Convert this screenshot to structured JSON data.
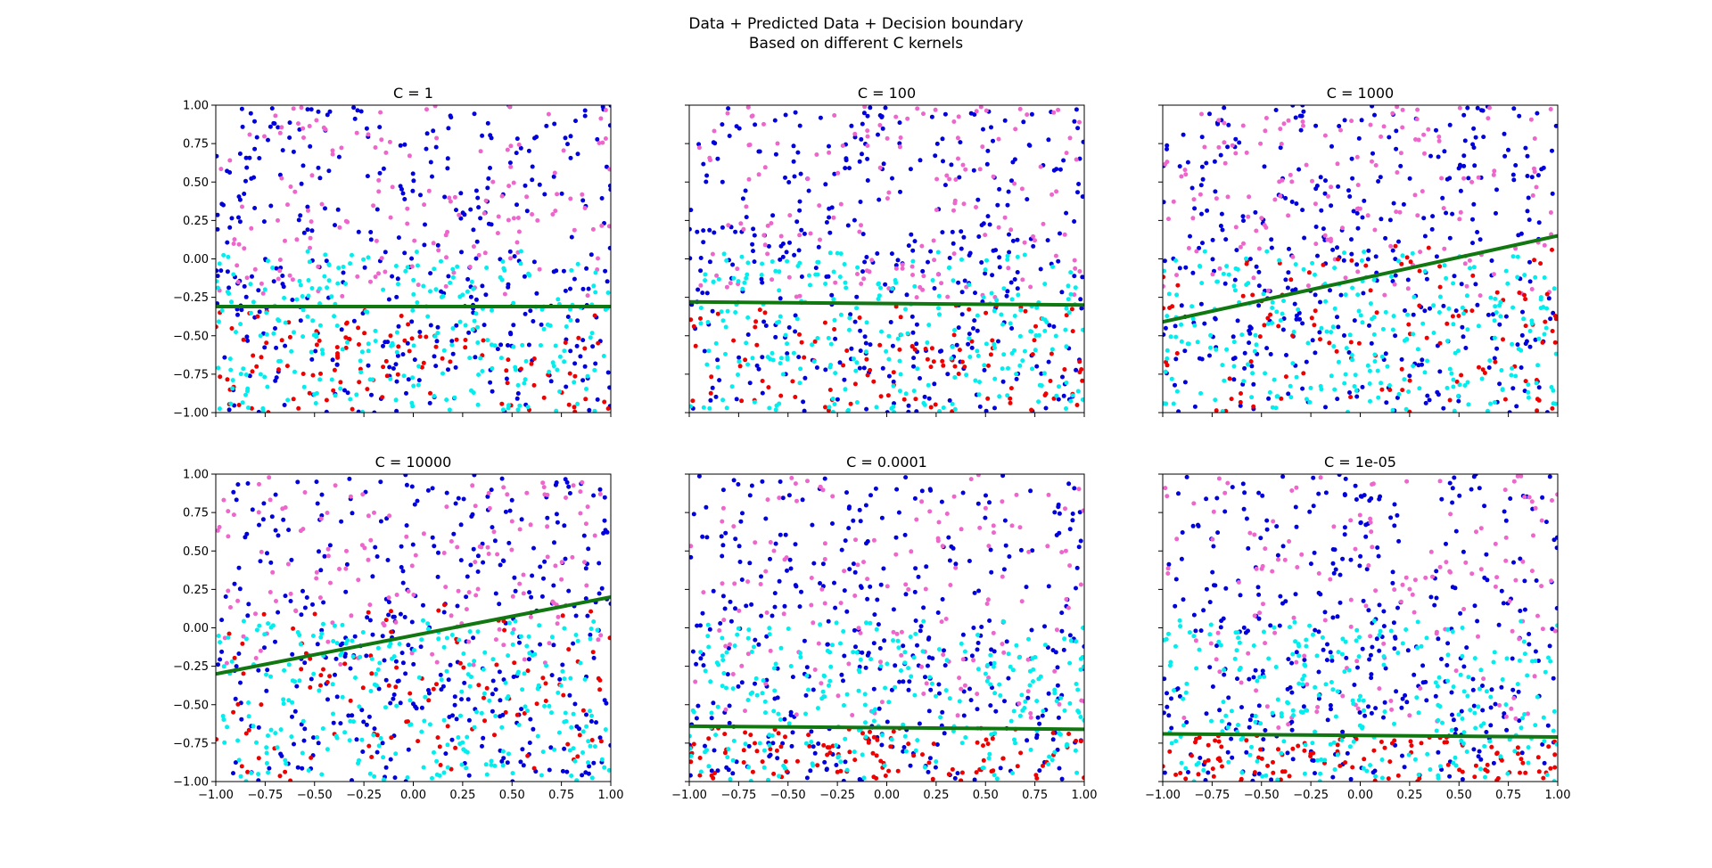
{
  "figure": {
    "suptitle_line1": "Data + Predicted Data + Decision boundary",
    "suptitle_line2": "Based on different C kernels"
  },
  "colors": {
    "class_a": "#0000dd",
    "class_a_predicted": "#ee66cc",
    "class_b": "#ee0000",
    "class_b_predicted": "#00eeee",
    "boundary": "#117711"
  },
  "chart_data": [
    {
      "type": "scatter",
      "title": "C = 1",
      "xlim": [
        -1,
        1
      ],
      "ylim": [
        -1,
        1
      ],
      "xticks": [
        "−1.00",
        "−0.75",
        "−0.50",
        "−0.25",
        "0.00",
        "0.25",
        "0.50",
        "0.75",
        "1.00"
      ],
      "yticks": [
        "−1.00",
        "−0.75",
        "−0.50",
        "−0.25",
        "0.00",
        "0.25",
        "0.50",
        "0.75",
        "1.00"
      ],
      "show_xticklabels": false,
      "show_yticklabels": true,
      "decision_boundary": {
        "x": [
          -1,
          1
        ],
        "y": [
          -0.31,
          -0.31
        ]
      },
      "series": [
        {
          "color_key": "class_a",
          "y_range": [
            -1,
            1
          ]
        },
        {
          "color_key": "class_a_predicted",
          "y_range": [
            -0.25,
            1
          ]
        },
        {
          "color_key": "class_b",
          "y_range": [
            -1,
            -0.3
          ]
        },
        {
          "color_key": "class_b_predicted",
          "y_range": [
            -1,
            0.05
          ]
        }
      ],
      "grid": false
    },
    {
      "type": "scatter",
      "title": "C = 100",
      "xlim": [
        -1,
        1
      ],
      "ylim": [
        -1,
        1
      ],
      "xticks": [
        "−1.00",
        "−0.75",
        "−0.50",
        "−0.25",
        "0.00",
        "0.25",
        "0.50",
        "0.75",
        "1.00"
      ],
      "yticks": [
        "−1.00",
        "−0.75",
        "−0.50",
        "−0.25",
        "0.00",
        "0.25",
        "0.50",
        "0.75",
        "1.00"
      ],
      "show_xticklabels": false,
      "show_yticklabels": false,
      "decision_boundary": {
        "x": [
          -1,
          1
        ],
        "y": [
          -0.28,
          -0.3
        ]
      },
      "series": [
        {
          "color_key": "class_a",
          "y_range": [
            -1,
            1
          ]
        },
        {
          "color_key": "class_a_predicted",
          "y_range": [
            -0.25,
            1
          ]
        },
        {
          "color_key": "class_b",
          "y_range": [
            -1,
            -0.3
          ]
        },
        {
          "color_key": "class_b_predicted",
          "y_range": [
            -1,
            0.05
          ]
        }
      ],
      "grid": false
    },
    {
      "type": "scatter",
      "title": "C = 1000",
      "xlim": [
        -1,
        1
      ],
      "ylim": [
        -1,
        1
      ],
      "xticks": [
        "−1.00",
        "−0.75",
        "−0.50",
        "−0.25",
        "0.00",
        "0.25",
        "0.50",
        "0.75",
        "1.00"
      ],
      "yticks": [
        "−1.00",
        "−0.75",
        "−0.50",
        "−0.25",
        "0.00",
        "0.25",
        "0.50",
        "0.75",
        "1.00"
      ],
      "show_xticklabels": false,
      "show_yticklabels": false,
      "decision_boundary": {
        "x": [
          -1,
          1
        ],
        "y": [
          -0.41,
          0.15
        ]
      },
      "series": [
        {
          "color_key": "class_a",
          "y_range": [
            -1,
            1
          ]
        },
        {
          "color_key": "class_a_predicted",
          "y_range": [
            -0.25,
            1
          ]
        },
        {
          "color_key": "class_b",
          "y_range": [
            -1,
            0.1
          ]
        },
        {
          "color_key": "class_b_predicted",
          "y_range": [
            -1,
            0.05
          ]
        }
      ],
      "grid": false
    },
    {
      "type": "scatter",
      "title": "C = 10000",
      "xlim": [
        -1,
        1
      ],
      "ylim": [
        -1,
        1
      ],
      "xticks": [
        "−1.00",
        "−0.75",
        "−0.50",
        "−0.25",
        "0.00",
        "0.25",
        "0.50",
        "0.75",
        "1.00"
      ],
      "yticks": [
        "−1.00",
        "−0.75",
        "−0.50",
        "−0.25",
        "0.00",
        "0.25",
        "0.50",
        "0.75",
        "1.00"
      ],
      "show_xticklabels": true,
      "show_yticklabels": true,
      "decision_boundary": {
        "x": [
          -1,
          1
        ],
        "y": [
          -0.3,
          0.2
        ]
      },
      "series": [
        {
          "color_key": "class_a",
          "y_range": [
            -1,
            1
          ]
        },
        {
          "color_key": "class_a_predicted",
          "y_range": [
            -0.25,
            1
          ]
        },
        {
          "color_key": "class_b",
          "y_range": [
            -1,
            0.15
          ]
        },
        {
          "color_key": "class_b_predicted",
          "y_range": [
            -1,
            0.05
          ]
        }
      ],
      "grid": false
    },
    {
      "type": "scatter",
      "title": "C = 0.0001",
      "xlim": [
        -1,
        1
      ],
      "ylim": [
        -1,
        1
      ],
      "xticks": [
        "−1.00",
        "−0.75",
        "−0.50",
        "−0.25",
        "0.00",
        "0.25",
        "0.50",
        "0.75",
        "1.00"
      ],
      "yticks": [
        "−1.00",
        "−0.75",
        "−0.50",
        "−0.25",
        "0.00",
        "0.25",
        "0.50",
        "0.75",
        "1.00"
      ],
      "show_xticklabels": true,
      "show_yticklabels": false,
      "decision_boundary": {
        "x": [
          -1,
          1
        ],
        "y": [
          -0.64,
          -0.66
        ]
      },
      "series": [
        {
          "color_key": "class_a",
          "y_range": [
            -1,
            1
          ]
        },
        {
          "color_key": "class_a_predicted",
          "y_range": [
            -0.6,
            1
          ]
        },
        {
          "color_key": "class_b",
          "y_range": [
            -1,
            -0.65
          ]
        },
        {
          "color_key": "class_b_predicted",
          "y_range": [
            -1,
            0.05
          ]
        }
      ],
      "grid": false
    },
    {
      "type": "scatter",
      "title": "C = 1e-05",
      "xlim": [
        -1,
        1
      ],
      "ylim": [
        -1,
        1
      ],
      "xticks": [
        "−1.00",
        "−0.75",
        "−0.50",
        "−0.25",
        "0.00",
        "0.25",
        "0.50",
        "0.75",
        "1.00"
      ],
      "yticks": [
        "−1.00",
        "−0.75",
        "−0.50",
        "−0.25",
        "0.00",
        "0.25",
        "0.50",
        "0.75",
        "1.00"
      ],
      "show_xticklabels": true,
      "show_yticklabels": false,
      "decision_boundary": {
        "x": [
          -1,
          1
        ],
        "y": [
          -0.69,
          -0.71
        ]
      },
      "series": [
        {
          "color_key": "class_a",
          "y_range": [
            -1,
            1
          ]
        },
        {
          "color_key": "class_a_predicted",
          "y_range": [
            -0.65,
            1
          ]
        },
        {
          "color_key": "class_b",
          "y_range": [
            -1,
            -0.7
          ]
        },
        {
          "color_key": "class_b_predicted",
          "y_range": [
            -1,
            0.05
          ]
        }
      ],
      "grid": false
    }
  ]
}
